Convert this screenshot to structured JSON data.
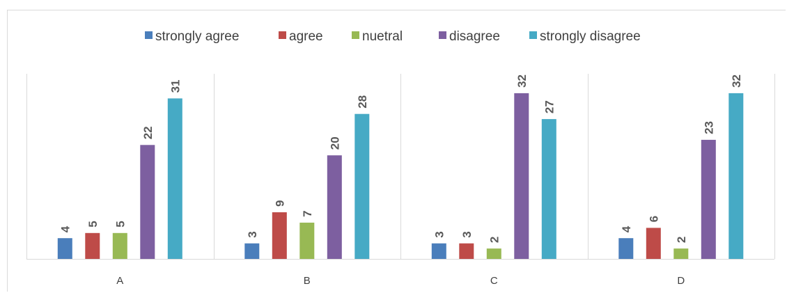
{
  "chart_data": {
    "type": "bar",
    "title": "",
    "xlabel": "",
    "ylabel": "",
    "categories": [
      "A",
      "B",
      "C",
      "D"
    ],
    "ylim": [
      0,
      35
    ],
    "grid": false,
    "legend_position": "top",
    "data_labels": true,
    "series": [
      {
        "name": "strongly agree",
        "color": "#4a7ebb",
        "values": [
          4,
          3,
          3,
          4
        ]
      },
      {
        "name": "agree",
        "color": "#be4b48",
        "values": [
          5,
          9,
          3,
          6
        ]
      },
      {
        "name": "nuetral",
        "color": "#98b954",
        "values": [
          5,
          7,
          2,
          2
        ]
      },
      {
        "name": "disagree",
        "color": "#7d5fa0",
        "values": [
          22,
          20,
          32,
          23
        ]
      },
      {
        "name": "strongly disagree",
        "color": "#46aac5",
        "values": [
          31,
          28,
          27,
          32
        ]
      }
    ]
  }
}
